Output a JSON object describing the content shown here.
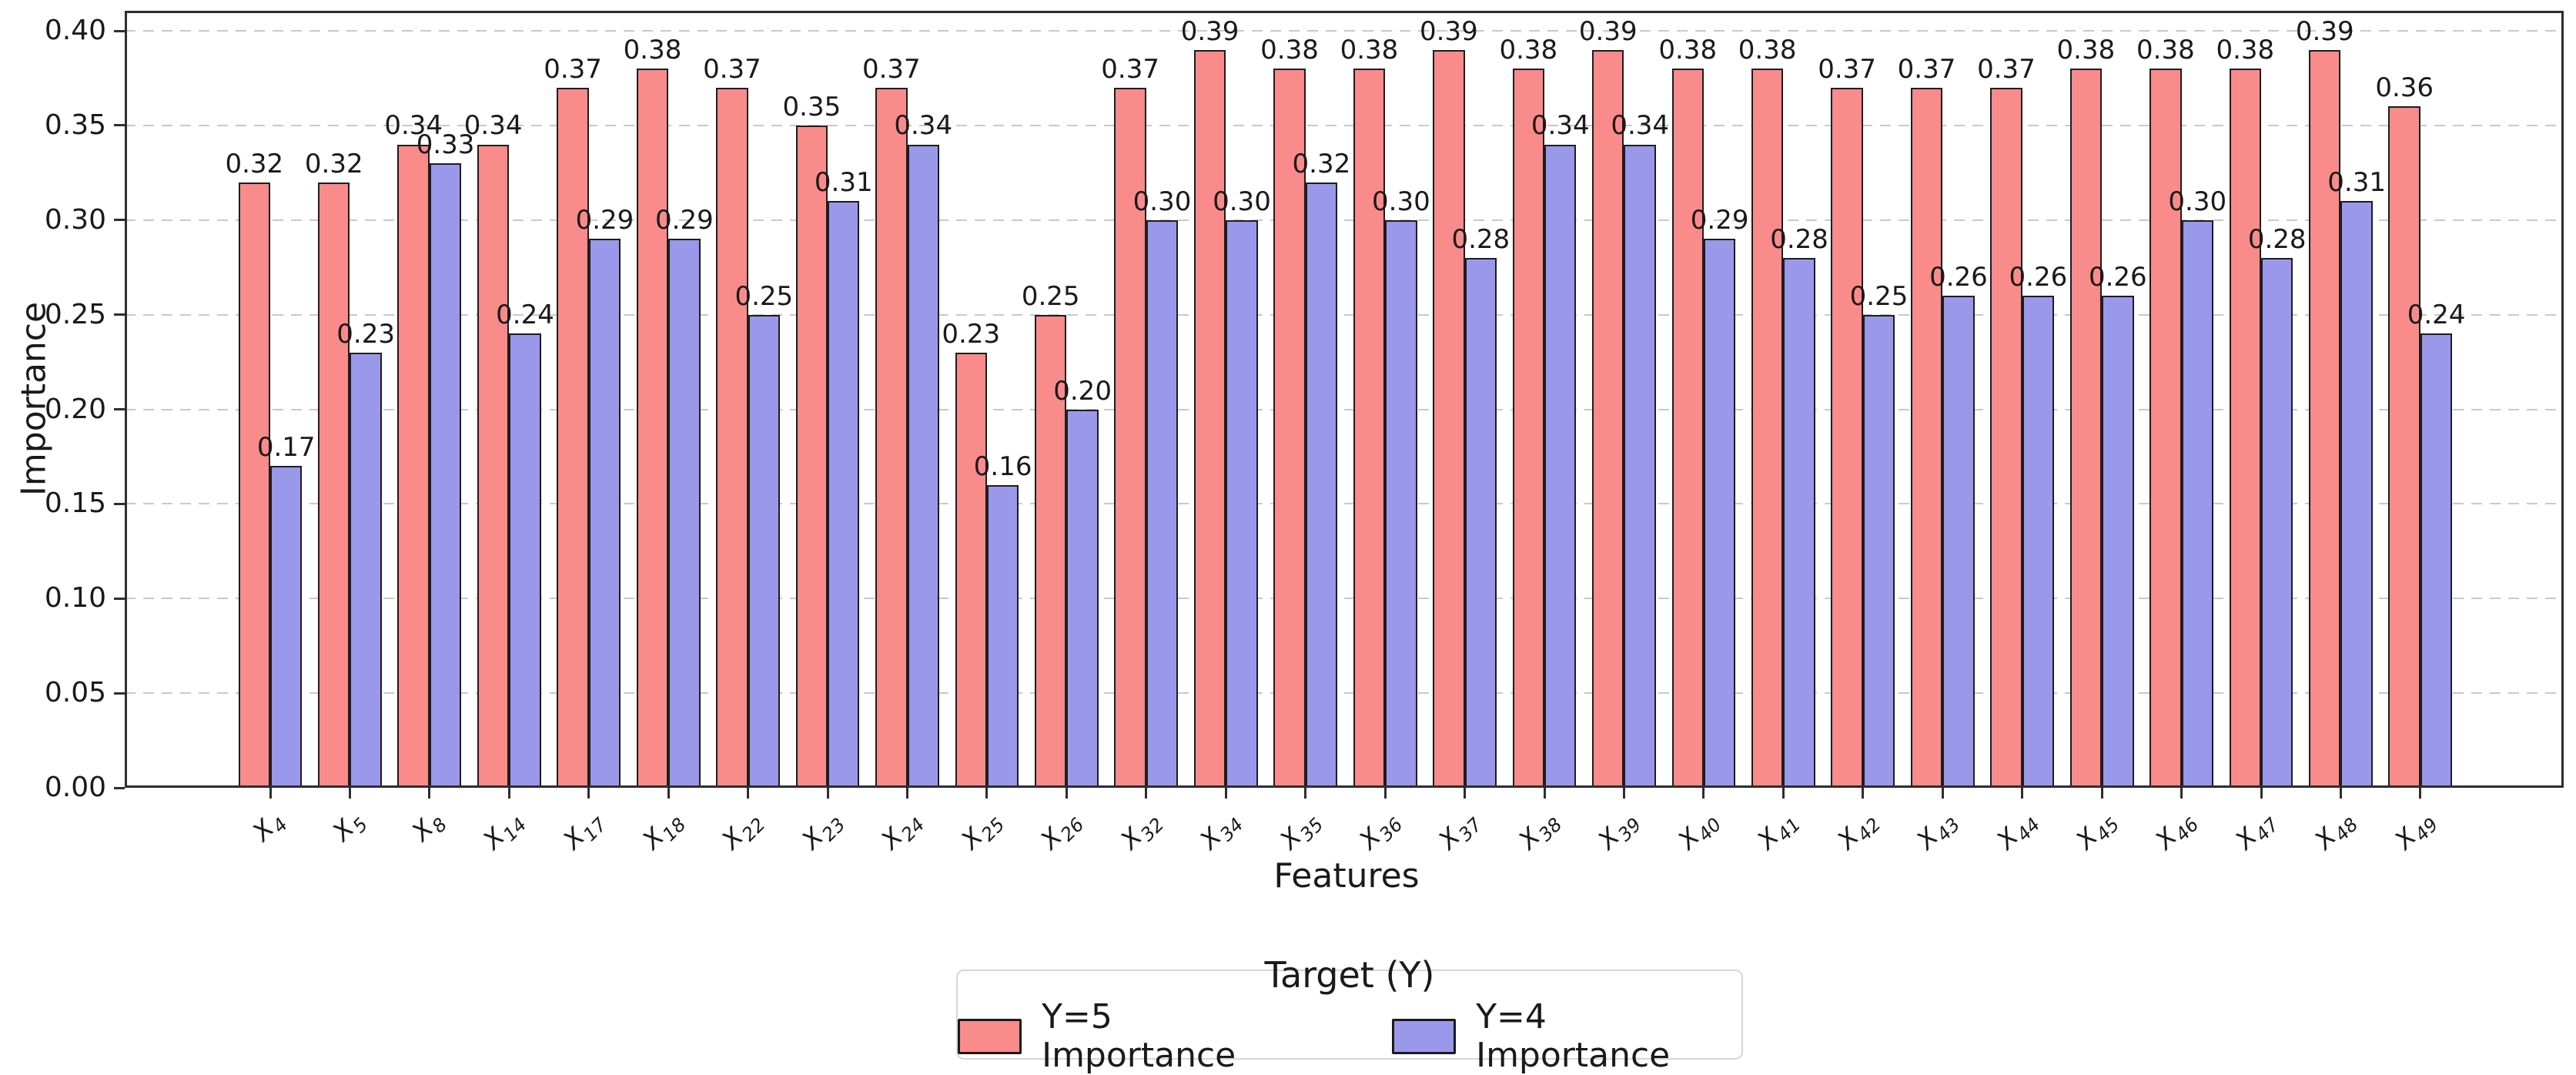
{
  "chart_data": {
    "type": "bar",
    "title": "",
    "categories": [
      "X4",
      "X5",
      "X8",
      "X14",
      "X17",
      "X18",
      "X22",
      "X23",
      "X24",
      "X25",
      "X26",
      "X32",
      "X34",
      "X35",
      "X36",
      "X37",
      "X38",
      "X39",
      "X40",
      "X41",
      "X42",
      "X43",
      "X44",
      "X45",
      "X46",
      "X47",
      "X48",
      "X49"
    ],
    "category_format": "italic X with numeric subscript, rotated 45 degrees",
    "series": [
      {
        "name": "Y=5 Importance",
        "color": "#fa8b8b",
        "values": [
          0.32,
          0.32,
          0.34,
          0.34,
          0.37,
          0.38,
          0.37,
          0.35,
          0.37,
          0.23,
          0.25,
          0.37,
          0.39,
          0.38,
          0.38,
          0.39,
          0.38,
          0.39,
          0.38,
          0.38,
          0.37,
          0.37,
          0.37,
          0.38,
          0.38,
          0.38,
          0.39,
          0.36
        ]
      },
      {
        "name": "Y=4 Importance",
        "color": "#9a98eb",
        "values": [
          0.17,
          0.23,
          0.33,
          0.24,
          0.29,
          0.29,
          0.25,
          0.31,
          0.34,
          0.16,
          0.2,
          0.3,
          0.3,
          0.32,
          0.3,
          0.28,
          0.34,
          0.34,
          0.29,
          0.28,
          0.25,
          0.26,
          0.26,
          0.26,
          0.3,
          0.28,
          0.31,
          0.24
        ]
      }
    ],
    "bar_value_labels": "each bar labeled above with its value to 2 decimals",
    "xlabel": "Features",
    "ylabel": "Importance",
    "ylim": [
      0,
      0.41
    ],
    "yticks": [
      "0.00",
      "0.05",
      "0.10",
      "0.15",
      "0.20",
      "0.25",
      "0.30",
      "0.35",
      "0.40"
    ],
    "grid": "horizontal dashed gridlines",
    "legend": {
      "title": "Target (Y)",
      "position": "bottom center, outside plot"
    }
  },
  "colors": {
    "bar_edge": "#1d1d1d",
    "grid": "#c9c9c9",
    "axis": "#2e2e2e",
    "background": "#ffffff",
    "legend_border": "#d6d6d6"
  }
}
